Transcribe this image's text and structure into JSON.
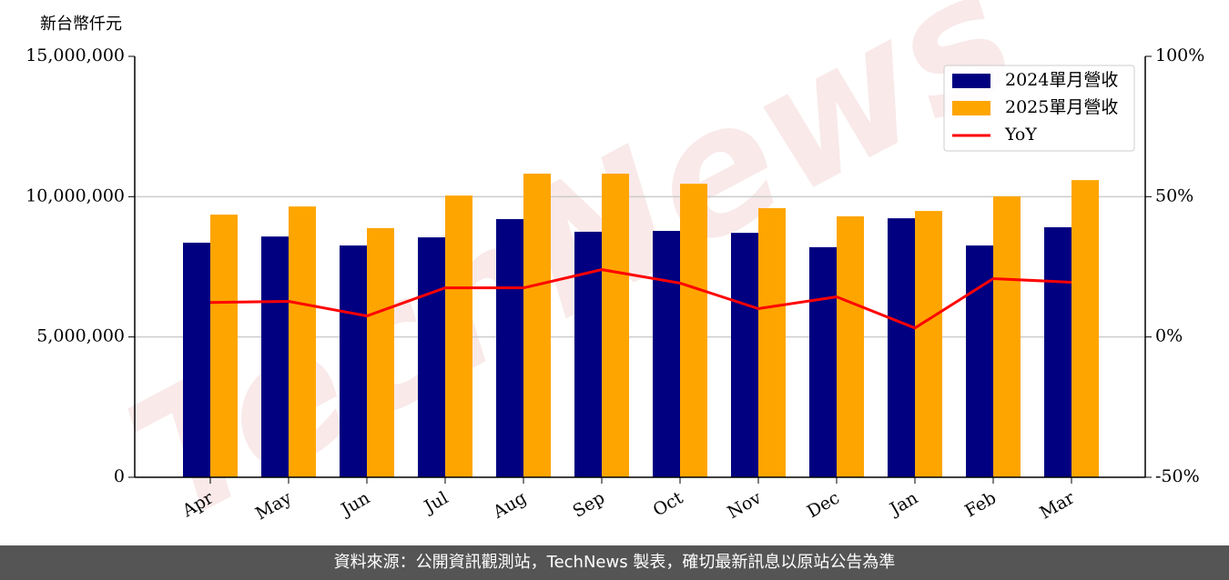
{
  "chart_data": {
    "type": "bar-line",
    "y_axis_label": "新台幣仟元",
    "watermark": "TechNews",
    "categories": [
      "Apr",
      "May",
      "Jun",
      "Jul",
      "Aug",
      "Sep",
      "Oct",
      "Nov",
      "Dec",
      "Jan",
      "Feb",
      "Mar"
    ],
    "series": [
      {
        "name": "2024單月營收",
        "type": "bar",
        "color": "#000080",
        "values": [
          8360000,
          8580000,
          8260000,
          8550000,
          9200000,
          8750000,
          8780000,
          8710000,
          8200000,
          9230000,
          8260000,
          8910000
        ]
      },
      {
        "name": "2025單月營收",
        "type": "bar",
        "color": "#ffa500",
        "values": [
          9360000,
          9650000,
          8880000,
          10040000,
          10820000,
          10820000,
          10460000,
          9590000,
          9300000,
          9490000,
          10010000,
          10590000
        ]
      },
      {
        "name": "YoY",
        "type": "line",
        "axis": "y2",
        "color": "#ff0000",
        "values": [
          12.3,
          12.7,
          7.5,
          17.5,
          17.5,
          24.0,
          19.2,
          10.1,
          14.3,
          3.2,
          20.8,
          19.5
        ]
      }
    ],
    "ylim": [
      0,
      15000000
    ],
    "yticks": [
      0,
      {
        "value": 5000000,
        "label": "5,000,000"
      },
      {
        "value": 10000000,
        "label": "10,000,000"
      },
      {
        "value": 15000000,
        "label": "15,000,000"
      }
    ],
    "y2lim": [
      -50,
      100
    ],
    "y2ticks": [
      {
        "value": -50,
        "label": "-50%"
      },
      {
        "value": 0,
        "label": "0%"
      },
      {
        "value": 50,
        "label": "50%"
      },
      {
        "value": 100,
        "label": "100%"
      }
    ],
    "grid": true,
    "legend": "upper right",
    "footer": "資料來源：公開資訊觀測站，TechNews 製表，確切最新訊息以原站公告為準"
  }
}
